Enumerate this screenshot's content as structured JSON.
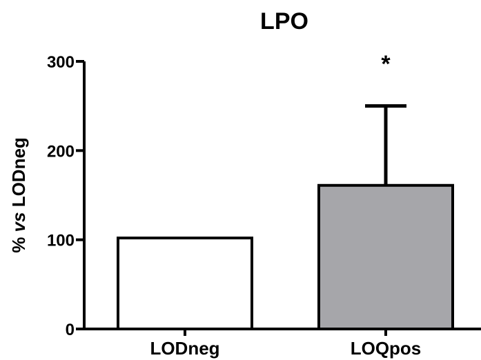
{
  "chart_data": {
    "type": "bar",
    "title": "LPO",
    "categories": [
      "LODneg",
      "LOQpos"
    ],
    "values": [
      102,
      161
    ],
    "errors": [
      0,
      89
    ],
    "fill_colors": [
      "#ffffff",
      "#a6a6aa"
    ],
    "annotations": [
      "",
      "*"
    ],
    "ylabel_prefix": "% ",
    "ylabel_italic": "vs",
    "ylabel_suffix": " LODneg",
    "xlabel": "",
    "ylim": [
      0,
      300
    ],
    "yticks": [
      0,
      100,
      200,
      300
    ],
    "grid": false,
    "legend": "none"
  }
}
